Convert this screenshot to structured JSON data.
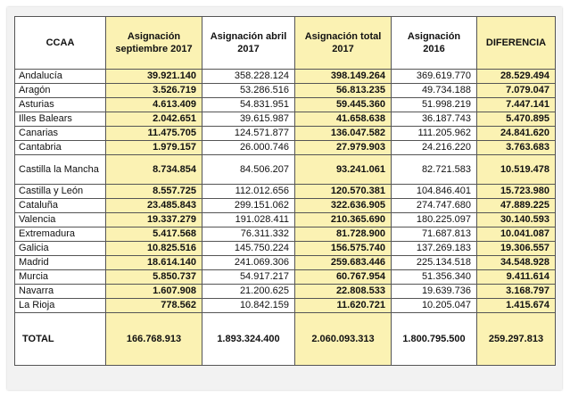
{
  "headers": {
    "ccaa": "CCAA",
    "sept2017": "Asignación septiembre 2017",
    "april2017": "Asignación abril 2017",
    "total2017": "Asignación total 2017",
    "y2016": "Asignación 2016",
    "diff": "DIFERENCIA"
  },
  "rows": [
    {
      "name": "Andalucía",
      "sept": "39.921.140",
      "april": "358.228.124",
      "total": "398.149.264",
      "y2016": "369.619.770",
      "diff": "28.529.494"
    },
    {
      "name": "Aragón",
      "sept": "3.526.719",
      "april": "53.286.516",
      "total": "56.813.235",
      "y2016": "49.734.188",
      "diff": "7.079.047"
    },
    {
      "name": "Asturias",
      "sept": "4.613.409",
      "april": "54.831.951",
      "total": "59.445.360",
      "y2016": "51.998.219",
      "diff": "7.447.141"
    },
    {
      "name": "Illes Balears",
      "sept": "2.042.651",
      "april": "39.615.987",
      "total": "41.658.638",
      "y2016": "36.187.743",
      "diff": "5.470.895"
    },
    {
      "name": "Canarias",
      "sept": "11.475.705",
      "april": "124.571.877",
      "total": "136.047.582",
      "y2016": "111.205.962",
      "diff": "24.841.620"
    },
    {
      "name": "Cantabria",
      "sept": "1.979.157",
      "april": "26.000.746",
      "total": "27.979.903",
      "y2016": "24.216.220",
      "diff": "3.763.683"
    },
    {
      "name": "Castilla la Mancha",
      "sept": "8.734.854",
      "april": "84.506.207",
      "total": "93.241.061",
      "y2016": "82.721.583",
      "diff": "10.519.478"
    },
    {
      "name": "Castilla y León",
      "sept": "8.557.725",
      "april": "112.012.656",
      "total": "120.570.381",
      "y2016": "104.846.401",
      "diff": "15.723.980"
    },
    {
      "name": "Cataluña",
      "sept": "23.485.843",
      "april": "299.151.062",
      "total": "322.636.905",
      "y2016": "274.747.680",
      "diff": "47.889.225"
    },
    {
      "name": "Valencia",
      "sept": "19.337.279",
      "april": "191.028.411",
      "total": "210.365.690",
      "y2016": "180.225.097",
      "diff": "30.140.593"
    },
    {
      "name": "Extremadura",
      "sept": "5.417.568",
      "april": "76.311.332",
      "total": "81.728.900",
      "y2016": "71.687.813",
      "diff": "10.041.087"
    },
    {
      "name": "Galicia",
      "sept": "10.825.516",
      "april": "145.750.224",
      "total": "156.575.740",
      "y2016": "137.269.183",
      "diff": "19.306.557"
    },
    {
      "name": "Madrid",
      "sept": "18.614.140",
      "april": "241.069.306",
      "total": "259.683.446",
      "y2016": "225.134.518",
      "diff": "34.548.928"
    },
    {
      "name": "Murcia",
      "sept": "5.850.737",
      "april": "54.917.217",
      "total": "60.767.954",
      "y2016": "51.356.340",
      "diff": "9.411.614"
    },
    {
      "name": "Navarra",
      "sept": "1.607.908",
      "april": "21.200.625",
      "total": "22.808.533",
      "y2016": "19.639.736",
      "diff": "3.168.797"
    },
    {
      "name": "La Rioja",
      "sept": "778.562",
      "april": "10.842.159",
      "total": "11.620.721",
      "y2016": "10.205.047",
      "diff": "1.415.674"
    }
  ],
  "total": {
    "label": "TOTAL",
    "sept": "166.768.913",
    "april": "1.893.324.400",
    "total": "2.060.093.313",
    "y2016": "1.800.795.500",
    "diff": "259.297.813"
  },
  "colors": {
    "highlight": "#fbf2b3",
    "border": "#555555"
  }
}
